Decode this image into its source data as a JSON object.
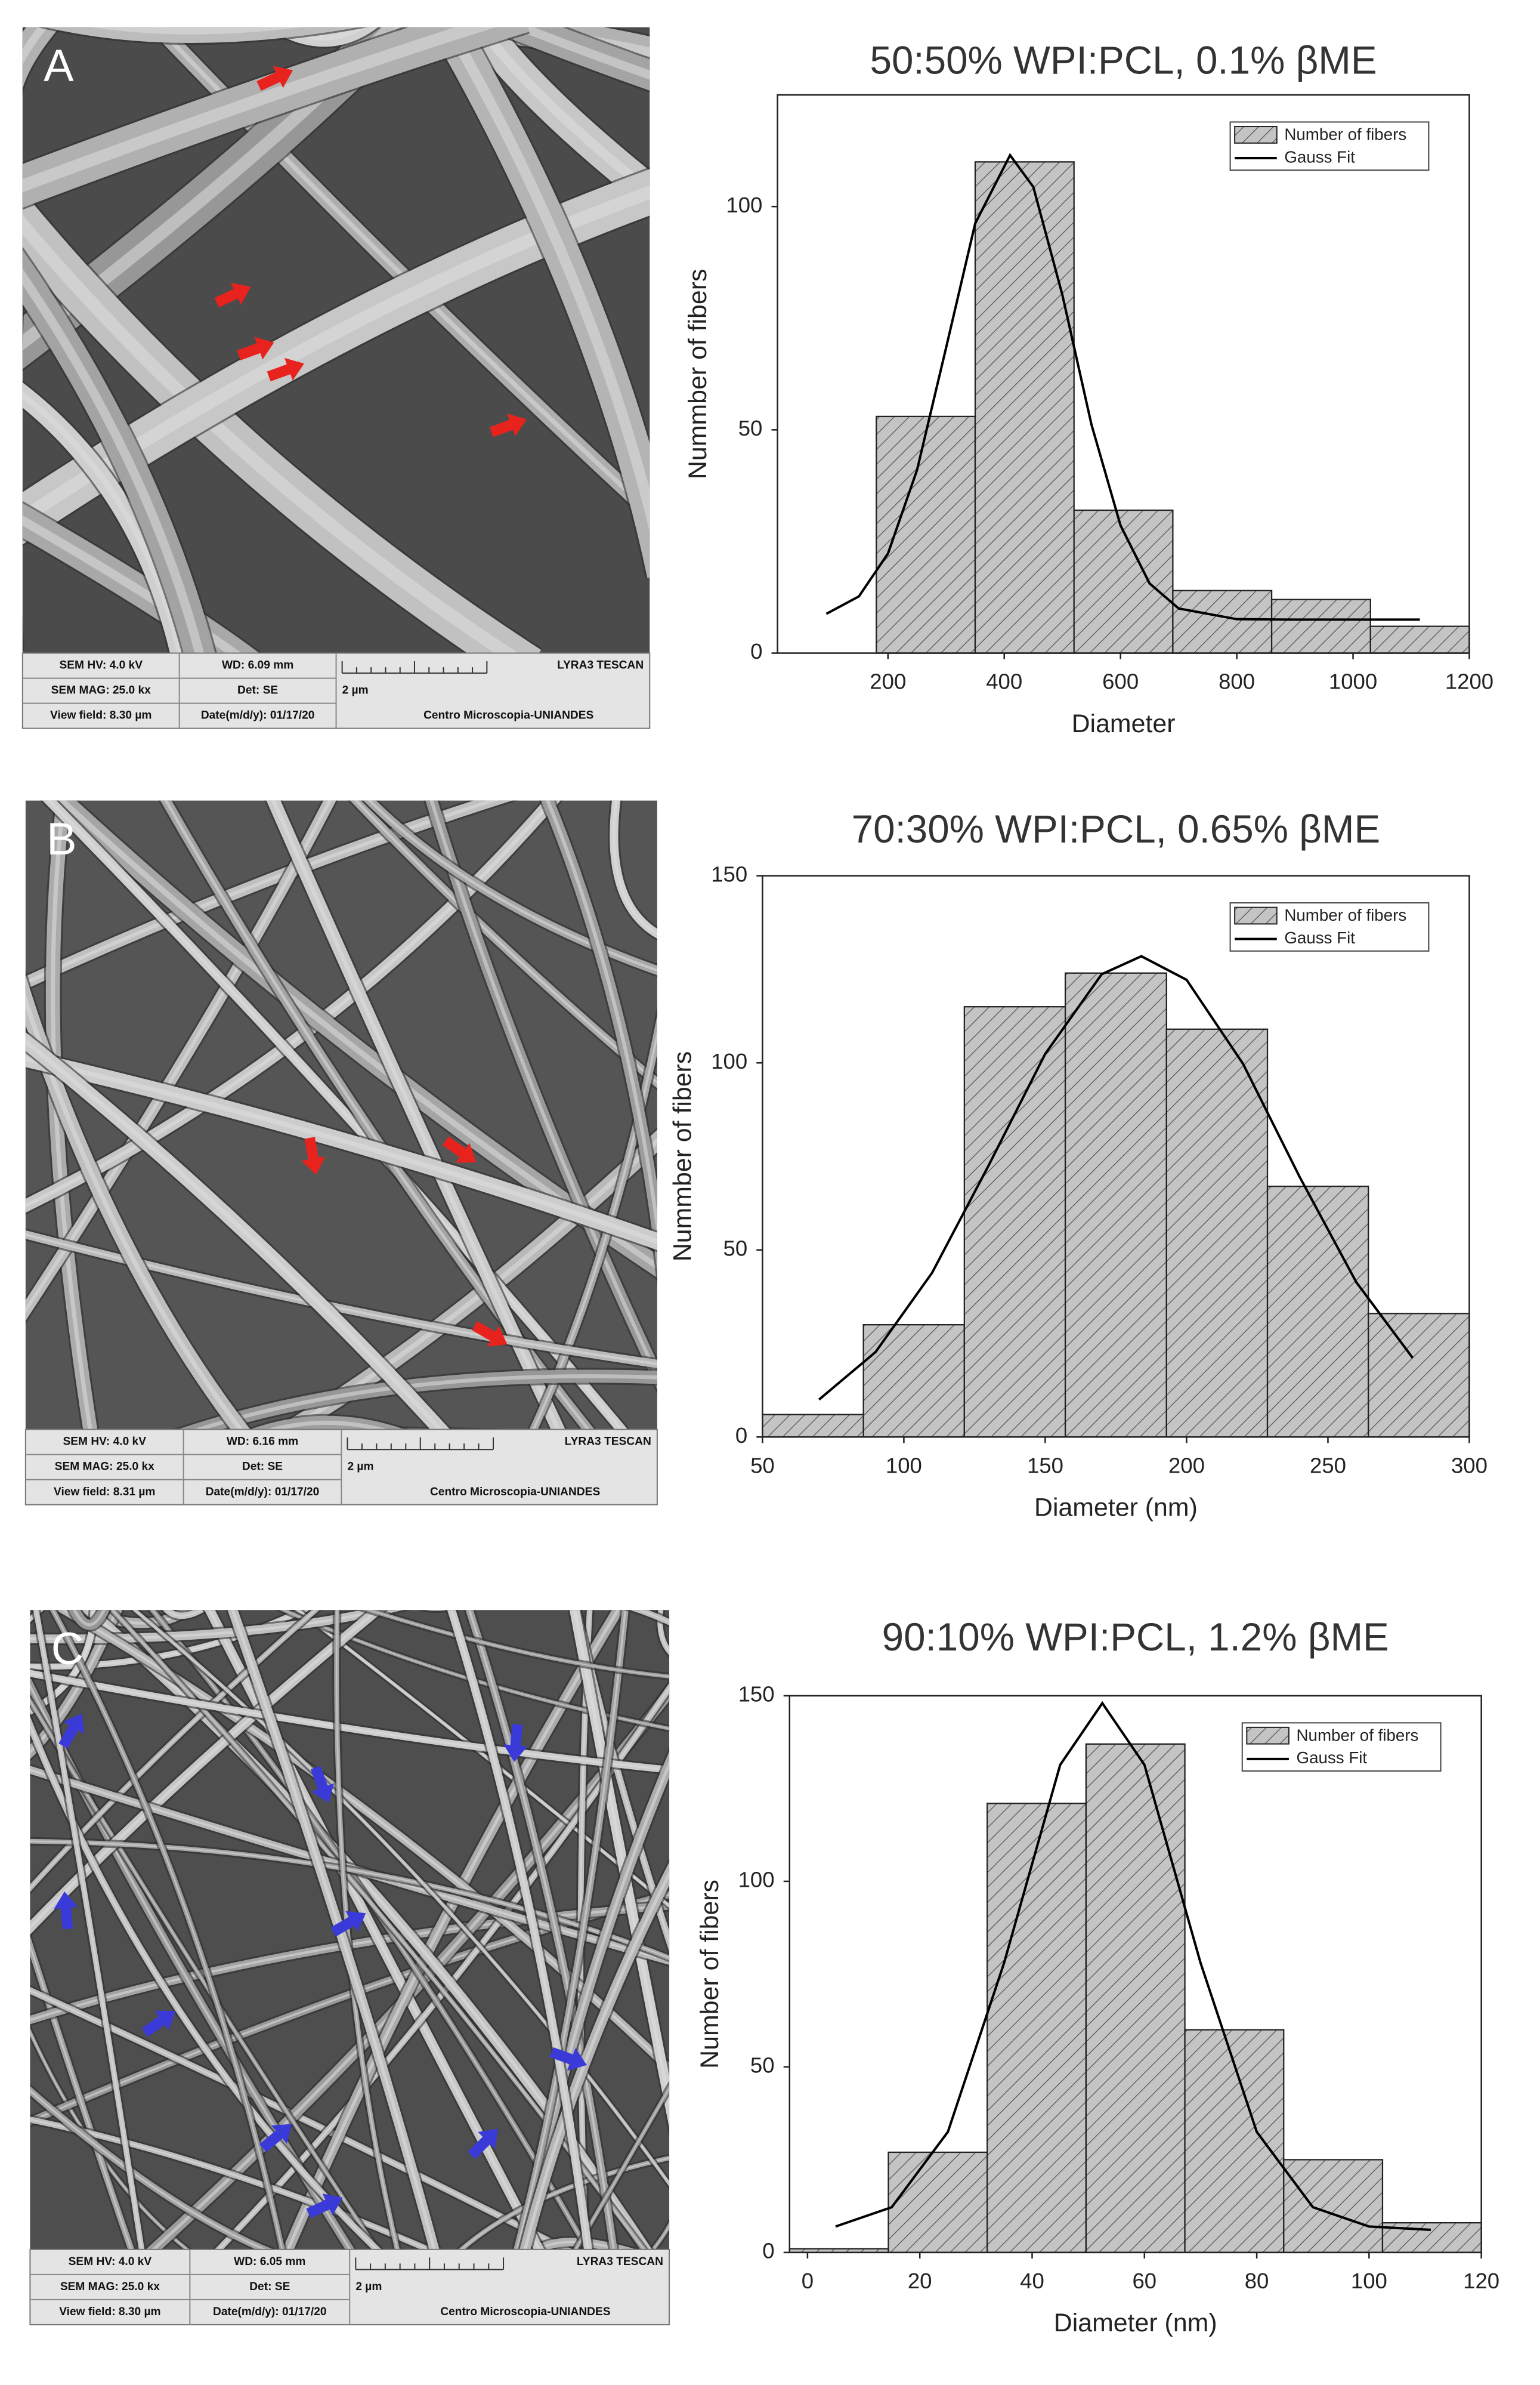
{
  "chart_data": [
    {
      "type": "histogram",
      "title": "50:50% WPI:PCL, 0.1% βME",
      "x_label": "Diameter",
      "y_label": "Nummber of fibers",
      "bins": [
        180,
        350,
        520,
        690,
        860,
        1030,
        1200
      ],
      "series": [
        {
          "name": "Number of fibers",
          "color": "#c4c4c4",
          "values": [
            53,
            110,
            32,
            14,
            12,
            6
          ]
        }
      ],
      "fit": {
        "name": "Gauss Fit",
        "color": "#000000",
        "x": [
          94,
          150,
          200,
          250,
          300,
          350,
          410,
          450,
          500,
          550,
          600,
          650,
          700,
          800,
          900,
          1115
        ],
        "values": [
          8.8,
          12.7,
          22.3,
          41.0,
          68.4,
          96.2,
          111.5,
          104.4,
          80.2,
          51.2,
          28.6,
          15.6,
          10.0,
          7.6,
          7.5,
          7.5
        ]
      },
      "xlim": [
        10,
        1200
      ],
      "xticks": [
        200,
        400,
        600,
        800,
        1000,
        1200
      ],
      "ylim": [
        0,
        125
      ],
      "yticks": [
        0,
        50,
        100
      ],
      "legend": "upper right",
      "grid": false
    },
    {
      "type": "histogram",
      "title": "70:30% WPI:PCL, 0.65% βME",
      "x_label": "Diameter (nm)",
      "y_label": "Nummber of fibers",
      "bins": [
        50,
        85.7,
        121.4,
        157.1,
        192.9,
        228.6,
        264.3,
        300
      ],
      "series": [
        {
          "name": "Number of fibers",
          "color": "#c4c4c4",
          "values": [
            6,
            30,
            115,
            124,
            109,
            67,
            33
          ]
        }
      ],
      "fit": {
        "name": "Gauss Fit",
        "color": "#000000",
        "x": [
          70,
          90,
          110,
          130,
          150,
          170,
          184,
          200,
          220,
          240,
          260,
          280
        ],
        "values": [
          10.0,
          22.7,
          43.9,
          72.6,
          102.4,
          123.7,
          128.5,
          122.2,
          99.7,
          69.5,
          41.4,
          21.1
        ]
      },
      "xlim": [
        50,
        300
      ],
      "xticks": [
        50,
        100,
        150,
        200,
        250,
        300
      ],
      "ylim": [
        0,
        150
      ],
      "yticks": [
        0,
        50,
        100,
        150
      ],
      "legend": "upper right",
      "grid": false
    },
    {
      "type": "histogram",
      "title": "90:10% WPI:PCL, 1.2% βME",
      "x_label": "Diameter (nm)",
      "y_label": "Number of fibers",
      "bins": [
        -3.2,
        14.4,
        32,
        49.6,
        67.2,
        84.8,
        102.4,
        120
      ],
      "series": [
        {
          "name": "Number of fibers",
          "color": "#c4c4c4",
          "values": [
            1,
            27,
            121,
            137,
            60,
            25,
            8
          ]
        }
      ],
      "fit": {
        "name": "Gauss Fit",
        "color": "#000000",
        "x": [
          5,
          15,
          25,
          35,
          45,
          52.5,
          60,
          70,
          80,
          90,
          100,
          111
        ],
        "values": [
          7.0,
          12.2,
          32.5,
          78.0,
          131.4,
          148,
          131.4,
          78.0,
          32.5,
          12.2,
          7.0,
          6.1
        ]
      },
      "xlim": [
        -3.2,
        120
      ],
      "xticks": [
        0,
        20,
        40,
        60,
        80,
        100,
        120
      ],
      "ylim": [
        0,
        150
      ],
      "yticks": [
        0,
        50,
        100,
        150
      ],
      "legend": "upper right",
      "grid": false
    }
  ],
  "micrographs": [
    {
      "label": "A",
      "hv": "SEM HV: 4.0 kV",
      "wd": "WD: 6.09 mm",
      "brand": "LYRA3 TESCAN",
      "mag": "SEM MAG: 25.0 kx",
      "det": "Det: SE",
      "scale": "2 µm",
      "view_field": "View field: 8.30 µm",
      "date": "Date(m/d/y): 01/17/20",
      "lab": "Centro Microscopia-UNIANDES"
    },
    {
      "label": "B",
      "hv": "SEM HV: 4.0 kV",
      "wd": "WD: 6.16 mm",
      "brand": "LYRA3 TESCAN",
      "mag": "SEM MAG: 25.0 kx",
      "det": "Det: SE",
      "scale": "2 µm",
      "view_field": "View field: 8.31 µm",
      "date": "Date(m/d/y): 01/17/20",
      "lab": "Centro Microscopia-UNIANDES"
    },
    {
      "label": "C",
      "hv": "SEM HV: 4.0 kV",
      "wd": "WD: 6.05 mm",
      "brand": "LYRA3 TESCAN",
      "mag": "SEM MAG: 25.0 kx",
      "det": "Det: SE",
      "scale": "2 µm",
      "view_field": "View field: 8.30 µm",
      "date": "Date(m/d/y): 01/17/20",
      "lab": "Centro Microscopia-UNIANDES"
    }
  ]
}
